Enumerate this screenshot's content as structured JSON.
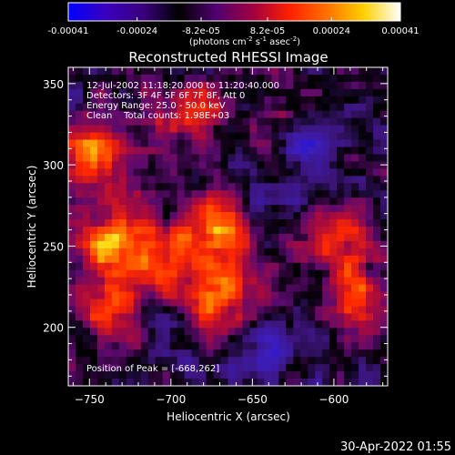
{
  "colorbar": {
    "tick_labels": [
      "-0.00041",
      "-0.00024",
      "-8.2e-05",
      "8.2e-05",
      "0.00024",
      "0.00041"
    ],
    "tick_values": [
      -0.00041,
      -0.00024,
      -8.2e-05,
      8.2e-05,
      0.00024,
      0.00041
    ],
    "range": [
      -0.00041,
      0.00041
    ],
    "units_prefix": "(photons cm",
    "units_exp1": "-2",
    "units_mid": " s",
    "units_exp2": "-1",
    "units_mid2": " asec",
    "units_exp3": "-2",
    "units_suffix": ")",
    "colors": [
      "#0000ff",
      "#3a00c0",
      "#3a0080",
      "#000000",
      "#500070",
      "#a00040",
      "#ff2000",
      "#ff7000",
      "#ffd000",
      "#ffffff"
    ]
  },
  "chart_data": {
    "type": "heatmap",
    "title": "Reconstructed RHESSI Image",
    "xlabel": "Heliocentric X (arcsec)",
    "ylabel": "Heliocentric Y (arcsec)",
    "xlim": [
      -763,
      -567
    ],
    "ylim": [
      164,
      360
    ],
    "x_ticks": [
      -750,
      -700,
      -650,
      -600
    ],
    "y_ticks": [
      200,
      250,
      300,
      350
    ],
    "grid": false,
    "annotations": [
      "12-Jul-2002 11:18:20.000 to 11:20:40.000",
      "Detectors: 3F 4F 5F 6F 7F 8F, Att 0",
      "Energy Range: 25.0 - 50.0 keV",
      "Clean    Total counts: 1.98E+03"
    ],
    "peak_label": "Position of Peak = [-668,262]",
    "peak": [
      -668,
      262
    ],
    "bright_regions": [
      {
        "x": -668,
        "y": 262,
        "level": 1.0
      },
      {
        "x": -745,
        "y": 310,
        "level": 0.8
      },
      {
        "x": -690,
        "y": 330,
        "level": 0.75
      },
      {
        "x": -735,
        "y": 255,
        "level": 0.85
      },
      {
        "x": -700,
        "y": 240,
        "level": 0.7
      },
      {
        "x": -670,
        "y": 215,
        "level": 0.8
      },
      {
        "x": -735,
        "y": 210,
        "level": 0.75
      },
      {
        "x": -600,
        "y": 255,
        "level": 0.75
      },
      {
        "x": -585,
        "y": 215,
        "level": 0.7
      },
      {
        "x": -630,
        "y": 320,
        "level": 0.55
      }
    ],
    "dark_regions": [
      {
        "x": -617,
        "y": 312,
        "level": -0.9
      },
      {
        "x": -650,
        "y": 280,
        "level": -0.5
      },
      {
        "x": -640,
        "y": 185,
        "level": -0.45
      },
      {
        "x": -710,
        "y": 200,
        "level": -0.4
      }
    ]
  },
  "timestamp": "30-Apr-2022 01:55"
}
